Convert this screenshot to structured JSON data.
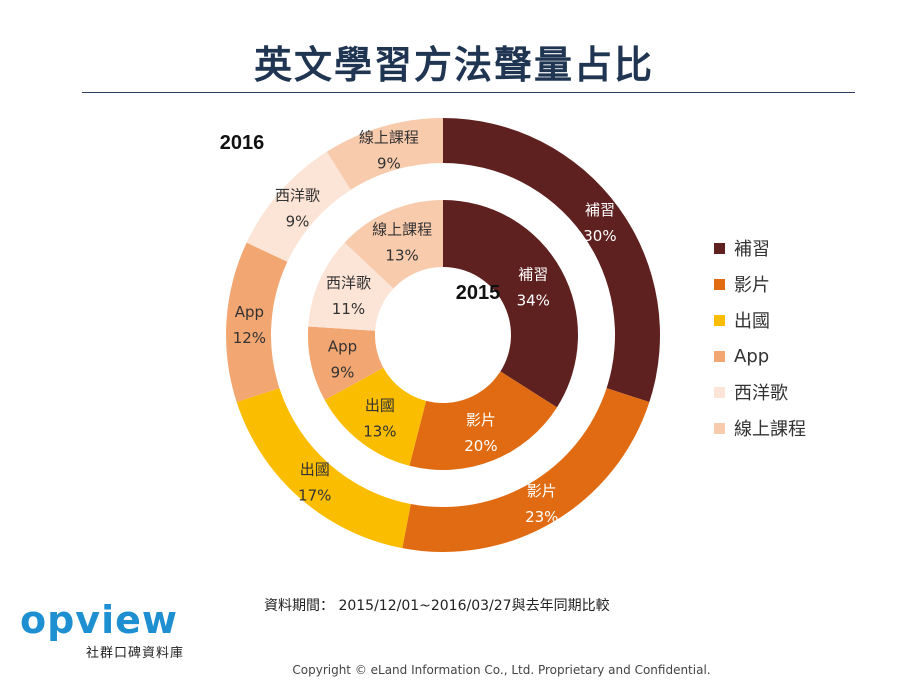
{
  "title": "英文學習方法聲量占比",
  "period_text": "資料期間： 2015/12/01~2016/03/27與去年同期比較",
  "copyright": "Copyright  © eLand Information Co., Ltd. Proprietary and Confidential.",
  "logo": {
    "word": "opview",
    "subtitle": "社群口碑資料庫"
  },
  "chart_data": {
    "type": "pie",
    "variant": "donut",
    "categories": [
      "補習",
      "影片",
      "出國",
      "App",
      "西洋歌",
      "線上課程"
    ],
    "colors": [
      "#5f2120",
      "#e06b12",
      "#fbbd00",
      "#f2a671",
      "#fce4d6",
      "#f8cbad"
    ],
    "series": [
      {
        "name": "2016",
        "ring": "outer",
        "values": [
          30,
          23,
          17,
          12,
          9,
          9
        ]
      },
      {
        "name": "2015",
        "ring": "inner",
        "values": [
          34,
          20,
          13,
          9,
          11,
          13
        ]
      }
    ],
    "value_suffix": "%",
    "legend_position": "right"
  }
}
